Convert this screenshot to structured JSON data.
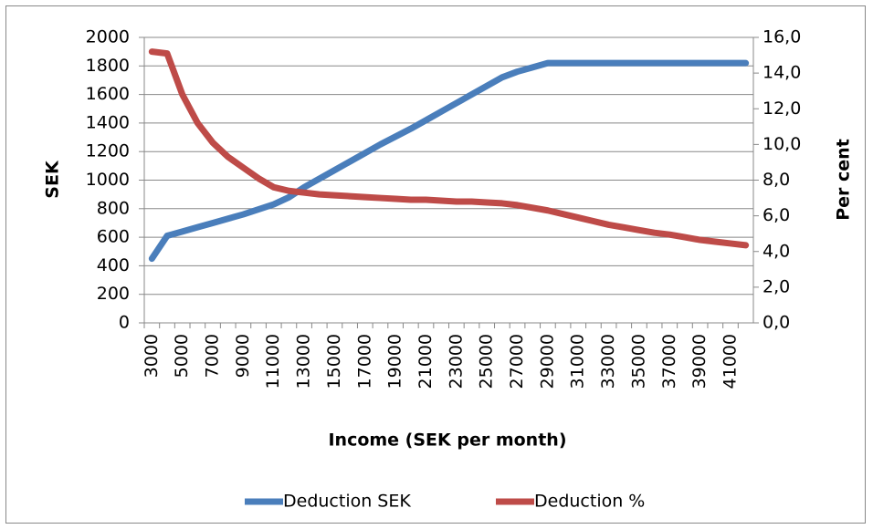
{
  "chart_data": {
    "type": "line",
    "x_label": "Income (SEK per month)",
    "y_label": "SEK",
    "y2_label": "Per cent",
    "categories": [
      "3000",
      null,
      "5000",
      null,
      "7000",
      null,
      "9000",
      null,
      "11000",
      null,
      "13000",
      null,
      "15000",
      null,
      "17000",
      null,
      "19000",
      null,
      "21000",
      null,
      "23000",
      null,
      "25000",
      null,
      "27000",
      null,
      "29000",
      null,
      "31000",
      null,
      "33000",
      null,
      "35000",
      null,
      "37000",
      null,
      "39000",
      null,
      "41000",
      null
    ],
    "series": [
      {
        "name": "Deduction SEK",
        "color": "#4a7ebb",
        "values": [
          450,
          610,
          640,
          670,
          700,
          730,
          760,
          795,
          830,
          880,
          950,
          1010,
          1070,
          1130,
          1190,
          1250,
          1305,
          1360,
          1420,
          1480,
          1540,
          1600,
          1660,
          1720,
          1760,
          1790,
          1820,
          1820,
          1820,
          1820,
          1820,
          1820,
          1820,
          1820,
          1820,
          1820,
          1820,
          1820,
          1820,
          1820
        ]
      },
      {
        "name": "Deduction %",
        "color": "#be4b48",
        "axis": "y2",
        "values": [
          15.2,
          15.1,
          12.8,
          11.2,
          10.1,
          9.3,
          8.7,
          8.1,
          7.6,
          7.4,
          7.3,
          7.2,
          7.15,
          7.1,
          7.05,
          7.0,
          6.95,
          6.9,
          6.9,
          6.85,
          6.8,
          6.8,
          6.75,
          6.7,
          6.6,
          6.45,
          6.3,
          6.1,
          5.9,
          5.7,
          5.5,
          5.35,
          5.2,
          5.05,
          4.95,
          4.8,
          4.65,
          4.55,
          4.45,
          4.35
        ]
      }
    ],
    "ylim": [
      0,
      2000
    ],
    "yticks": [
      0,
      200,
      400,
      600,
      800,
      1000,
      1200,
      1400,
      1600,
      1800,
      2000
    ],
    "y2lim": [
      0,
      16
    ],
    "y2ticks": [
      {
        "value": 0,
        "label": "0,0"
      },
      {
        "value": 2,
        "label": "2,0"
      },
      {
        "value": 4,
        "label": "4,0"
      },
      {
        "value": 6,
        "label": "6,0"
      },
      {
        "value": 8,
        "label": "8,0"
      },
      {
        "value": 10,
        "label": "10,0"
      },
      {
        "value": 12,
        "label": "12,0"
      },
      {
        "value": 14,
        "label": "14,0"
      },
      {
        "value": 16,
        "label": "16,0"
      }
    ],
    "grid": true,
    "legend": "bottom"
  }
}
